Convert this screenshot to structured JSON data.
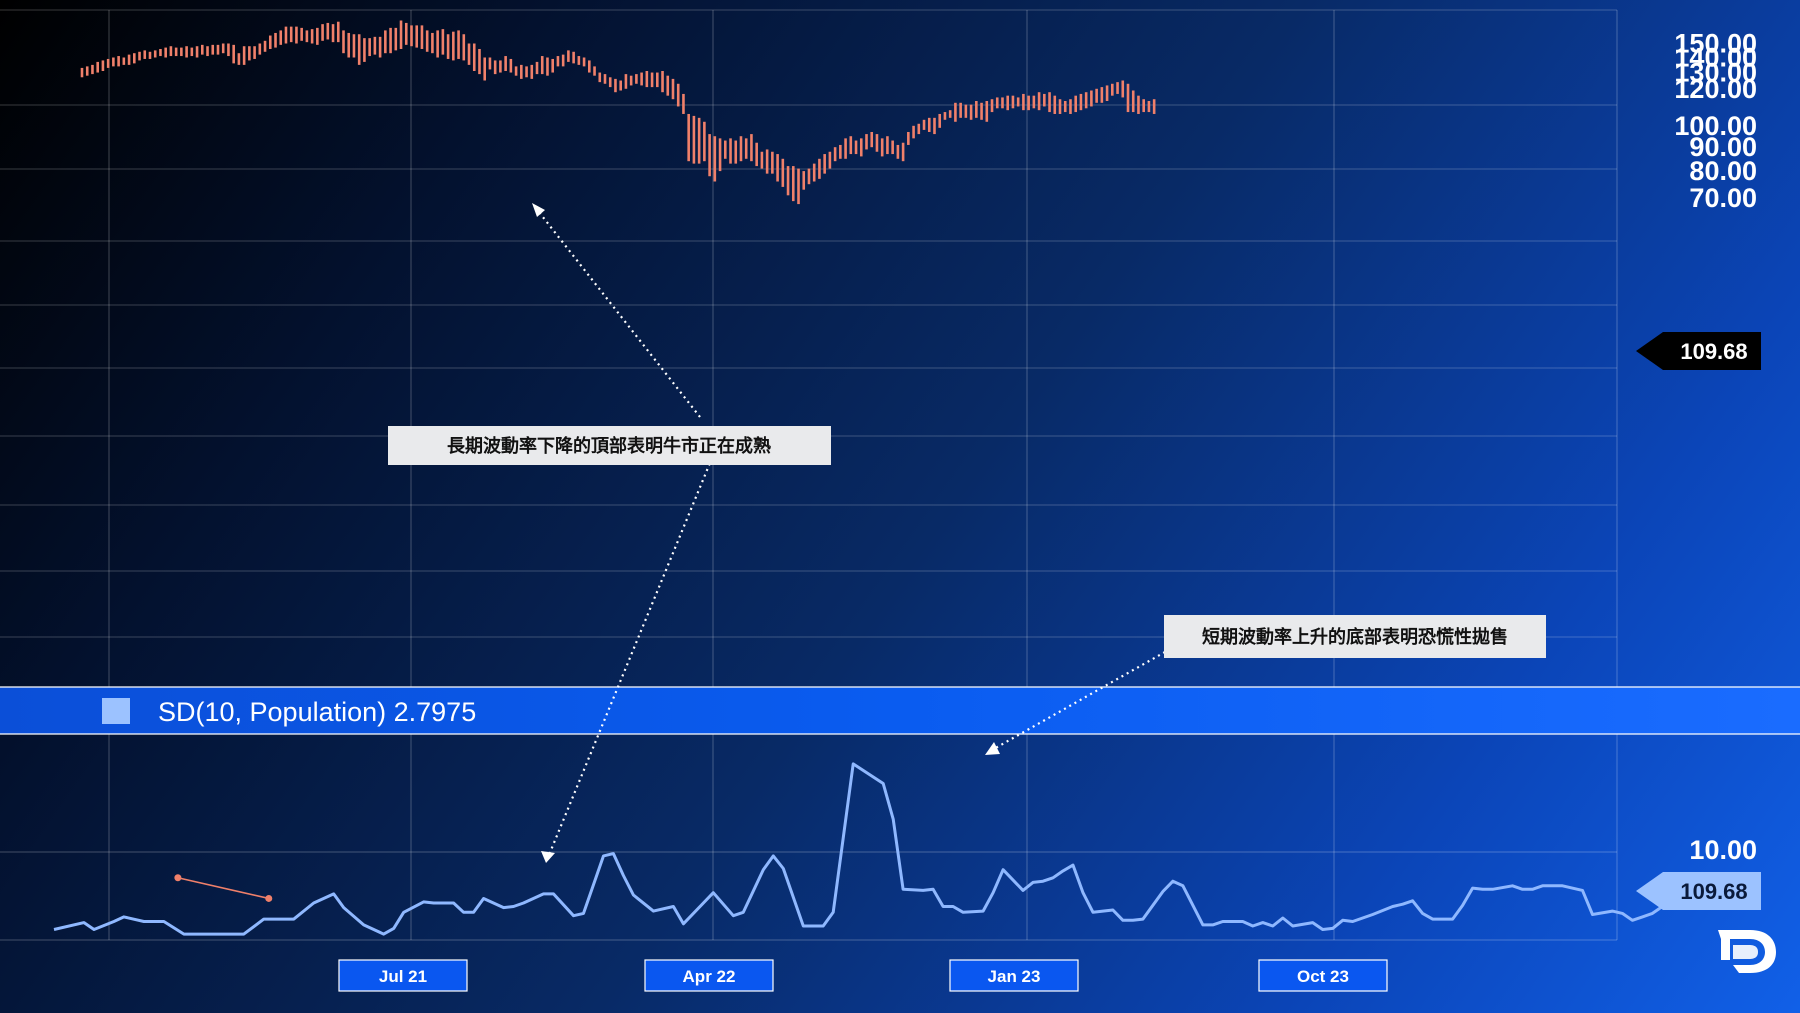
{
  "colors": {
    "bars": "#f0806a",
    "indicator_line": "#8fb8ff",
    "trendline": "#f0806a",
    "price_tag_bg": "#000000",
    "price_tag_text": "#ffffff",
    "sd_tag_bg": "#9cc2ff",
    "sd_tag_text": "#0a1a3a",
    "x_label_bg": "#0a57f0"
  },
  "chart_data": [
    {
      "type": "bar",
      "subtype": "ohlc-range-bars",
      "title": "",
      "ylim": [
        62,
        161
      ],
      "y_scale": "log",
      "y_ticks": [
        "150.00",
        "140.00",
        "130.00",
        "120.00",
        "100.00",
        "90.00",
        "80.00",
        "70.00"
      ],
      "x_ticks": [
        "Jul 21",
        "Apr 22",
        "Jan 23",
        "Oct 23"
      ],
      "last_value_label": "109.68",
      "grid": true,
      "ranges": [
        [
          127,
          133
        ],
        [
          128,
          134
        ],
        [
          129,
          135
        ],
        [
          130,
          137
        ],
        [
          131,
          138
        ],
        [
          133,
          139
        ],
        [
          134,
          140
        ],
        [
          134,
          141
        ],
        [
          135,
          140
        ],
        [
          135,
          142
        ],
        [
          136,
          143
        ],
        [
          138,
          144
        ],
        [
          139,
          145
        ],
        [
          139,
          144
        ],
        [
          140,
          145
        ],
        [
          141,
          146
        ],
        [
          140,
          147
        ],
        [
          141,
          148
        ],
        [
          141,
          147
        ],
        [
          141,
          147
        ],
        [
          140,
          148
        ],
        [
          141,
          147
        ],
        [
          140,
          148
        ],
        [
          142,
          149
        ],
        [
          141,
          148
        ],
        [
          142,
          149
        ],
        [
          142,
          149
        ],
        [
          143,
          150
        ],
        [
          141,
          150
        ],
        [
          136,
          149
        ],
        [
          135,
          143
        ],
        [
          135,
          148
        ],
        [
          138,
          148
        ],
        [
          139,
          148
        ],
        [
          142,
          150
        ],
        [
          144,
          152
        ],
        [
          146,
          156
        ],
        [
          147,
          158
        ],
        [
          149,
          160
        ],
        [
          150,
          163
        ],
        [
          151,
          163
        ],
        [
          150,
          163
        ],
        [
          152,
          162
        ],
        [
          151,
          160
        ],
        [
          150,
          161
        ],
        [
          149,
          162
        ],
        [
          152,
          165
        ],
        [
          153,
          166
        ],
        [
          151,
          165
        ],
        [
          151,
          167
        ],
        [
          143,
          160
        ],
        [
          140,
          158
        ],
        [
          140,
          157
        ],
        [
          135,
          157
        ],
        [
          137,
          154
        ],
        [
          141,
          154
        ],
        [
          142,
          155
        ],
        [
          140,
          155
        ],
        [
          143,
          160
        ],
        [
          143,
          162
        ],
        [
          145,
          162
        ],
        [
          146,
          168
        ],
        [
          149,
          166
        ],
        [
          148,
          164
        ],
        [
          147,
          164
        ],
        [
          146,
          164
        ],
        [
          144,
          160
        ],
        [
          143,
          158
        ],
        [
          140,
          160
        ],
        [
          142,
          161
        ],
        [
          139,
          157
        ],
        [
          138,
          159
        ],
        [
          139,
          160
        ],
        [
          138,
          157
        ],
        [
          135,
          150
        ],
        [
          131,
          150
        ],
        [
          129,
          146
        ],
        [
          125,
          140
        ],
        [
          132,
          140
        ],
        [
          129,
          138
        ],
        [
          130,
          138
        ],
        [
          131,
          141
        ],
        [
          130,
          139
        ],
        [
          128,
          134
        ],
        [
          126,
          135
        ],
        [
          127,
          134
        ],
        [
          126,
          135
        ],
        [
          129,
          137
        ],
        [
          129,
          141
        ],
        [
          128,
          140
        ],
        [
          130,
          139
        ],
        [
          134,
          141
        ],
        [
          134,
          142
        ],
        [
          137,
          145
        ],
        [
          136,
          144
        ],
        [
          135,
          141
        ],
        [
          134,
          140
        ],
        [
          130,
          138
        ],
        [
          128,
          134
        ],
        [
          124,
          130
        ],
        [
          123,
          129
        ],
        [
          121,
          127
        ],
        [
          118,
          126
        ],
        [
          119,
          125
        ],
        [
          120,
          129
        ],
        [
          122,
          128
        ],
        [
          123,
          129
        ],
        [
          122,
          130
        ],
        [
          121,
          131
        ],
        [
          121,
          130
        ],
        [
          121,
          130
        ],
        [
          118,
          131
        ],
        [
          116,
          128
        ],
        [
          114,
          126
        ],
        [
          110,
          123
        ],
        [
          106,
          117
        ],
        [
          84,
          106
        ],
        [
          83,
          105
        ],
        [
          83,
          104
        ],
        [
          84,
          102
        ],
        [
          78,
          96
        ],
        [
          76,
          95
        ],
        [
          80,
          94
        ],
        [
          85,
          93
        ],
        [
          83,
          94
        ],
        [
          83,
          93
        ],
        [
          84,
          95
        ],
        [
          85,
          94
        ],
        [
          84,
          96
        ],
        [
          82,
          92
        ],
        [
          81,
          88
        ],
        [
          79,
          89
        ],
        [
          79,
          88
        ],
        [
          76,
          87
        ],
        [
          74,
          85
        ],
        [
          71,
          82
        ],
        [
          69,
          82
        ],
        [
          68,
          81
        ],
        [
          73,
          80
        ],
        [
          75,
          81
        ],
        [
          76,
          83
        ],
        [
          77,
          85
        ],
        [
          79,
          87
        ],
        [
          81,
          88
        ],
        [
          84,
          90
        ],
        [
          85,
          91
        ],
        [
          85,
          94
        ],
        [
          87,
          95
        ],
        [
          87,
          93
        ],
        [
          86,
          94
        ],
        [
          89,
          96
        ],
        [
          90,
          97
        ],
        [
          88,
          96
        ],
        [
          86,
          94
        ],
        [
          87,
          95
        ],
        [
          87,
          93
        ],
        [
          85,
          91
        ],
        [
          84,
          92
        ],
        [
          91,
          97
        ],
        [
          94,
          100
        ],
        [
          96,
          101
        ],
        [
          98,
          103
        ],
        [
          97,
          104
        ],
        [
          96,
          104
        ],
        [
          99,
          106
        ],
        [
          103,
          107
        ],
        [
          104,
          108
        ],
        [
          102,
          112
        ],
        [
          104,
          112
        ],
        [
          104,
          111
        ],
        [
          103,
          111
        ],
        [
          104,
          113
        ],
        [
          103,
          112
        ],
        [
          102,
          113
        ],
        [
          107,
          114
        ],
        [
          109,
          115
        ],
        [
          109,
          115
        ],
        [
          108,
          116
        ],
        [
          109,
          116
        ],
        [
          110,
          115
        ],
        [
          108,
          117
        ],
        [
          108,
          116
        ],
        [
          109,
          116
        ],
        [
          108,
          118
        ],
        [
          110,
          117
        ],
        [
          107,
          118
        ],
        [
          106,
          116
        ],
        [
          106,
          114
        ],
        [
          107,
          113
        ],
        [
          106,
          114
        ],
        [
          107,
          116
        ],
        [
          108,
          117
        ],
        [
          109,
          118
        ],
        [
          110,
          119
        ],
        [
          112,
          120
        ],
        [
          112,
          121
        ],
        [
          113,
          122
        ],
        [
          116,
          123
        ],
        [
          117,
          124
        ],
        [
          115,
          125
        ],
        [
          107,
          123
        ],
        [
          107,
          119
        ],
        [
          106,
          116
        ],
        [
          107,
          114
        ],
        [
          107,
          113
        ],
        [
          106,
          114
        ]
      ]
    },
    {
      "type": "line",
      "title": "SD(10, Population) 2.7975",
      "ylim": [
        0,
        22
      ],
      "y_ticks": [
        "10.00"
      ],
      "last_value_label": "109.68",
      "trendline": [
        [
          12.4,
          7.5
        ],
        [
          21.5,
          5.7
        ]
      ],
      "series": [
        {
          "x": [
            0,
            3,
            4,
            6,
            7,
            9,
            11,
            13,
            14,
            16,
            17,
            19,
            21,
            23,
            24,
            26,
            28,
            29,
            31,
            33,
            34,
            35,
            37,
            38,
            40,
            41,
            42,
            43,
            45,
            46,
            47,
            49,
            50,
            52,
            53,
            55,
            56,
            57,
            58,
            60,
            62,
            63,
            65,
            66,
            68,
            69,
            71,
            72,
            73,
            75,
            76,
            77,
            78,
            80,
            83,
            84,
            85,
            87,
            88,
            89,
            90,
            91,
            93,
            94,
            95,
            97,
            98,
            99,
            100,
            101,
            102,
            103,
            104,
            106,
            107,
            108,
            109,
            111,
            112,
            113,
            115,
            116,
            117,
            119,
            120,
            121,
            122,
            123,
            124,
            126,
            127,
            128,
            129,
            130,
            131,
            132,
            134,
            135,
            136,
            137,
            138,
            139,
            140,
            141,
            142,
            143,
            144,
            146,
            147,
            148,
            149,
            150,
            151,
            153,
            154,
            156,
            157,
            158,
            159,
            160,
            161
          ],
          "values": [
            3.0,
            3.6,
            3.0,
            3.7,
            4.1,
            3.7,
            3.7,
            2.6,
            2.6,
            2.6,
            2.6,
            2.6,
            3.9,
            3.9,
            3.9,
            5.3,
            6.1,
            4.9,
            3.4,
            2.6,
            3.1,
            4.5,
            5.4,
            5.3,
            5.3,
            4.5,
            4.5,
            5.7,
            4.9,
            5.0,
            5.3,
            6.1,
            6.1,
            4.2,
            4.4,
            9.4,
            9.6,
            7.7,
            6.0,
            4.6,
            5.0,
            3.5,
            5.3,
            6.2,
            4.2,
            4.5,
            8.2,
            9.4,
            8.3,
            3.3,
            3.3,
            3.3,
            4.5,
            17.4,
            15.7,
            12.6,
            6.5,
            6.4,
            6.5,
            5.0,
            5.0,
            4.5,
            4.6,
            6.2,
            8.2,
            6.4,
            7.1,
            7.2,
            7.5,
            8.1,
            8.6,
            6.2,
            4.5,
            4.7,
            3.8,
            3.8,
            3.9,
            6.3,
            7.2,
            6.8,
            3.4,
            3.4,
            3.7,
            3.7,
            3.3,
            3.6,
            3.3,
            4.0,
            3.3,
            3.6,
            3.0,
            3.1,
            3.8,
            3.7,
            4.0,
            4.3,
            5.0,
            5.2,
            5.5,
            4.4,
            3.9,
            3.9,
            3.9,
            5.1,
            6.6,
            6.5,
            6.5,
            6.8,
            6.5,
            6.5,
            6.8,
            6.8,
            6.8,
            6.4,
            4.3,
            4.6,
            4.4,
            3.8,
            4.1,
            4.4,
            5.0
          ]
        }
      ]
    }
  ],
  "annotations": [
    {
      "text": "長期波動率下降的頂部表明牛市正在成熟"
    },
    {
      "text": "短期波動率上升的底部表明恐慌性拋售"
    }
  ],
  "logo": {
    "icon": "pepperstone-logo-icon"
  }
}
